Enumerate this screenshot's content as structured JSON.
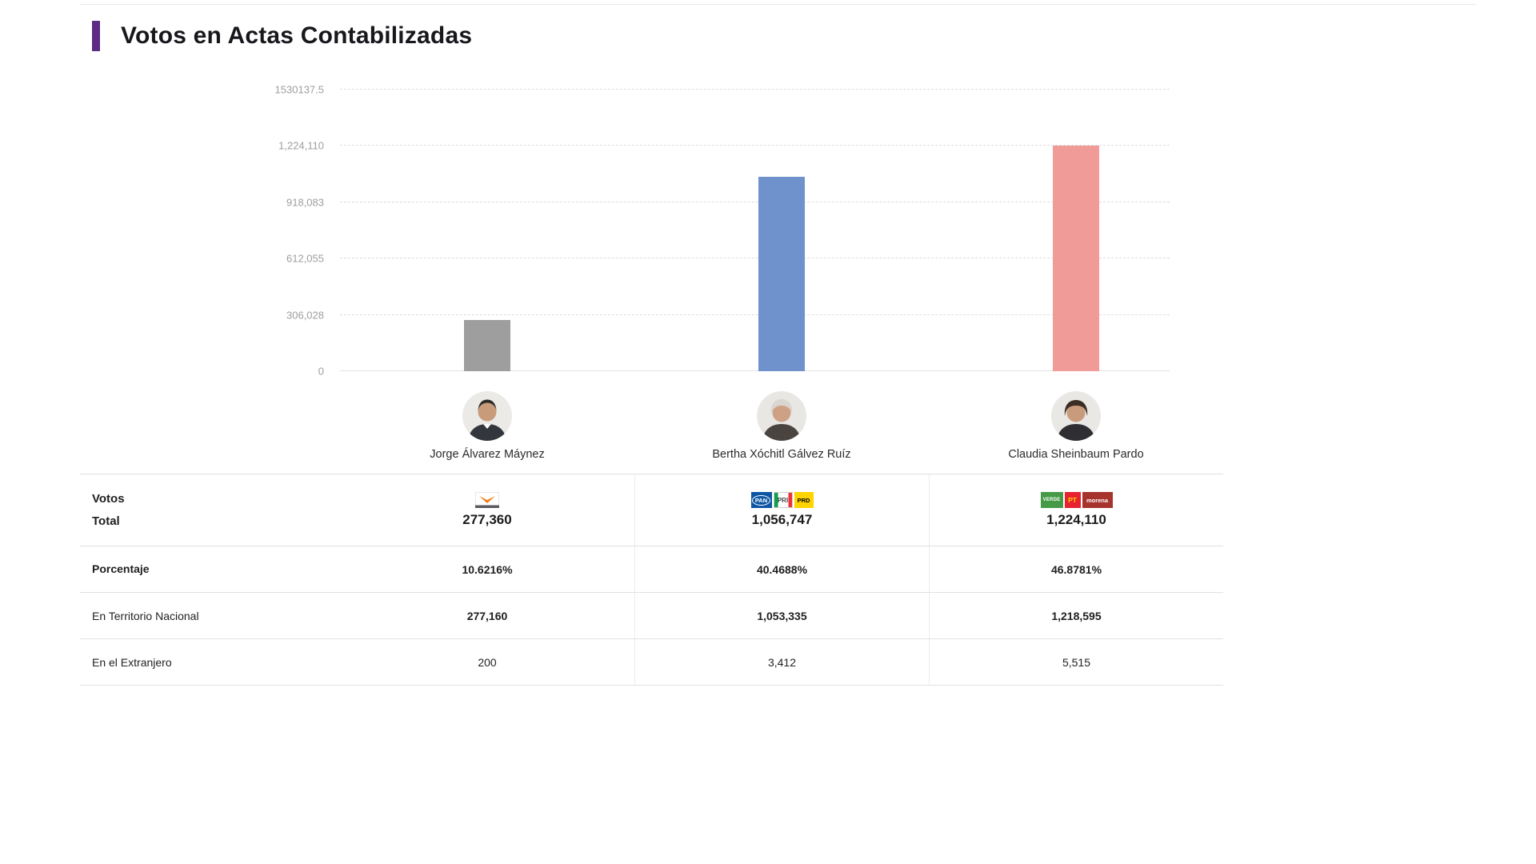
{
  "header": {
    "title": "Votos en Actas Contabilizadas"
  },
  "colors": {
    "accent": "#5f2a84",
    "bar_gray": "#9e9e9e",
    "bar_blue": "#7092cc",
    "bar_pink": "#f09b98",
    "gridline": "#dcdcdc",
    "tick_label": "#9e9e9e"
  },
  "chart_data": {
    "type": "bar",
    "title": "Votos en Actas Contabilizadas",
    "categories": [
      "Jorge Álvarez Máynez",
      "Bertha Xóchitl Gálvez Ruíz",
      "Claudia Sheinbaum Pardo"
    ],
    "values": [
      277360,
      1056747,
      1224110
    ],
    "bar_colors": [
      "#9e9e9e",
      "#7092cc",
      "#f09b98"
    ],
    "xlabel": "",
    "ylabel": "",
    "ylim": [
      0,
      1530137.5
    ],
    "yticks": [
      0,
      306028,
      612055,
      918083,
      1224110,
      1530137.5
    ],
    "ytick_labels": [
      "0",
      "306,028",
      "612,055",
      "918,083",
      "1,224,110",
      "1530137.5"
    ],
    "grid": "horizontal-dashed",
    "legend": "none"
  },
  "candidates": [
    {
      "name": "Jorge Álvarez Máynez",
      "votos_total": "277,360",
      "porcentaje": "10.6216%",
      "territorio_nacional": "277,160",
      "extranjero": "200",
      "parties": [
        {
          "label": "MC"
        }
      ]
    },
    {
      "name": "Bertha Xóchitl Gálvez Ruíz",
      "votos_total": "1,056,747",
      "porcentaje": "40.4688%",
      "territorio_nacional": "1,053,335",
      "extranjero": "3,412",
      "parties": [
        {
          "label": "PAN"
        },
        {
          "label": "PRI"
        },
        {
          "label": "PRD"
        }
      ]
    },
    {
      "name": "Claudia Sheinbaum Pardo",
      "votos_total": "1,224,110",
      "porcentaje": "46.8781%",
      "territorio_nacional": "1,218,595",
      "extranjero": "5,515",
      "parties": [
        {
          "label": "VERDE"
        },
        {
          "label": "PT"
        },
        {
          "label": "morena"
        }
      ]
    }
  ],
  "table": {
    "votos_label": "Votos",
    "total_label": "Total",
    "porcentaje_label": "Porcentaje",
    "territorio_label": "En Territorio Nacional",
    "extranjero_label": "En el Extranjero"
  }
}
